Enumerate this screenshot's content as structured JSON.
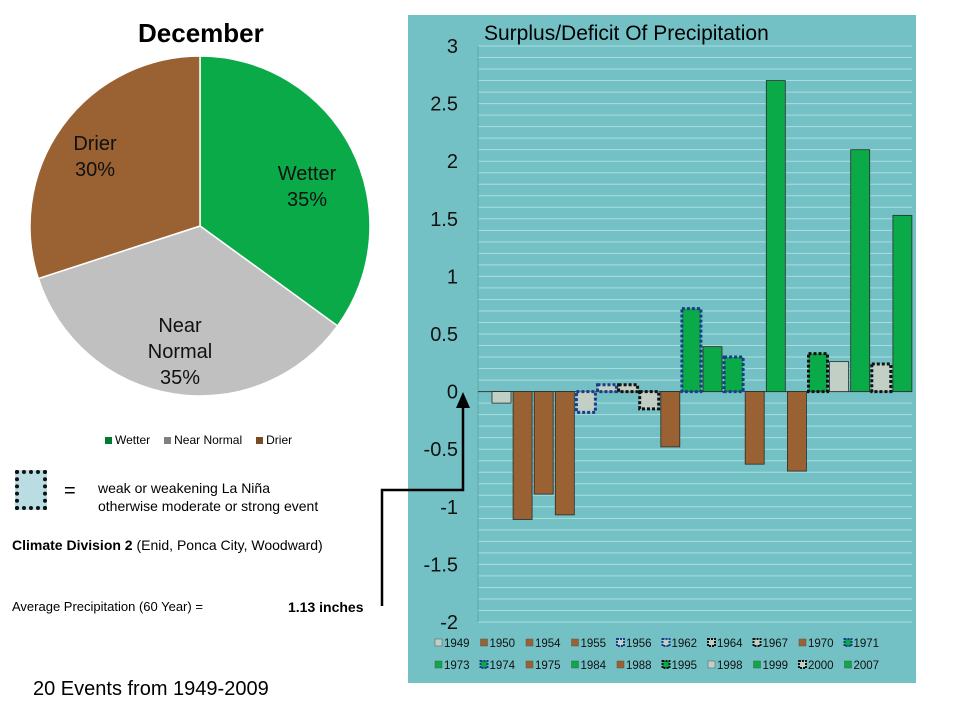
{
  "pie": {
    "title": "December",
    "slices": [
      {
        "name": "Wetter",
        "percent": 35,
        "color": "#0aaa48",
        "label_lines": [
          "Wetter",
          "35%"
        ]
      },
      {
        "name": "Near Normal",
        "percent": 35,
        "color": "#c0c0c0",
        "label_lines": [
          "Near",
          "Normal",
          "35%"
        ]
      },
      {
        "name": "Drier",
        "percent": 30,
        "color": "#9a6233",
        "label_lines": [
          "Drier",
          "30%"
        ]
      }
    ],
    "legend": [
      {
        "label": "Wetter",
        "color": "#007a33"
      },
      {
        "label": "Near Normal",
        "color": "#808080"
      },
      {
        "label": "Drier",
        "color": "#7a4a22"
      }
    ]
  },
  "key": {
    "equals": "=",
    "line1": "weak or weakening La Niña",
    "line2": "otherwise moderate or strong event"
  },
  "division": {
    "bold": "Climate Division 2",
    "rest": " (Enid, Ponca City, Woodward)"
  },
  "average": {
    "label": "Average Precipitation (60 Year) =",
    "value": "1.13 inches"
  },
  "events_text": "20 Events from 1949-2009",
  "colors": {
    "panel_bg": "#74c1c5",
    "wetter": "#0aaa48",
    "near_normal": "#c2cfc4",
    "drier": "#9a6233",
    "weak_border_blue": "#1a3c8c",
    "weak_border_black": "#111111"
  },
  "chart_data": {
    "type": "bar",
    "title": "Surplus/Deficit Of Precipitation",
    "xlabel": "",
    "ylabel": "",
    "ylim": [
      -2,
      3
    ],
    "yticks": [
      3,
      2.5,
      2,
      1.5,
      1,
      0.5,
      0,
      -0.5,
      -1,
      -1.5,
      -2
    ],
    "grid": true,
    "legend_position": "bottom",
    "series": [
      {
        "year": "1949",
        "value": -0.1,
        "category": "Near Normal",
        "weak": false
      },
      {
        "year": "1950",
        "value": -1.11,
        "category": "Drier",
        "weak": false
      },
      {
        "year": "1954",
        "value": -0.89,
        "category": "Drier",
        "weak": false
      },
      {
        "year": "1955",
        "value": -1.07,
        "category": "Drier",
        "weak": false
      },
      {
        "year": "1956",
        "value": -0.18,
        "category": "Near Normal",
        "weak": true,
        "border": "blue"
      },
      {
        "year": "1962",
        "value": 0.06,
        "category": "Near Normal",
        "weak": true,
        "border": "blue"
      },
      {
        "year": "1964",
        "value": 0.06,
        "category": "Near Normal",
        "weak": true,
        "border": "black"
      },
      {
        "year": "1967",
        "value": -0.15,
        "category": "Near Normal",
        "weak": true,
        "border": "black"
      },
      {
        "year": "1970",
        "value": -0.48,
        "category": "Drier",
        "weak": false
      },
      {
        "year": "1971",
        "value": 0.72,
        "category": "Wetter",
        "weak": true,
        "border": "blue"
      },
      {
        "year": "1973",
        "value": 0.39,
        "category": "Wetter",
        "weak": false
      },
      {
        "year": "1974",
        "value": 0.3,
        "category": "Wetter",
        "weak": true,
        "border": "blue"
      },
      {
        "year": "1975",
        "value": -0.63,
        "category": "Drier",
        "weak": false
      },
      {
        "year": "1984",
        "value": 2.7,
        "category": "Wetter",
        "weak": false
      },
      {
        "year": "1988",
        "value": -0.69,
        "category": "Drier",
        "weak": false
      },
      {
        "year": "1995",
        "value": 0.33,
        "category": "Wetter",
        "weak": true,
        "border": "black"
      },
      {
        "year": "1998",
        "value": 0.26,
        "category": "Near Normal",
        "weak": false
      },
      {
        "year": "1999",
        "value": 2.1,
        "category": "Wetter",
        "weak": false
      },
      {
        "year": "2000",
        "value": 0.24,
        "category": "Near Normal",
        "weak": true,
        "border": "black"
      },
      {
        "year": "2007",
        "value": 1.53,
        "category": "Wetter",
        "weak": false
      }
    ]
  }
}
